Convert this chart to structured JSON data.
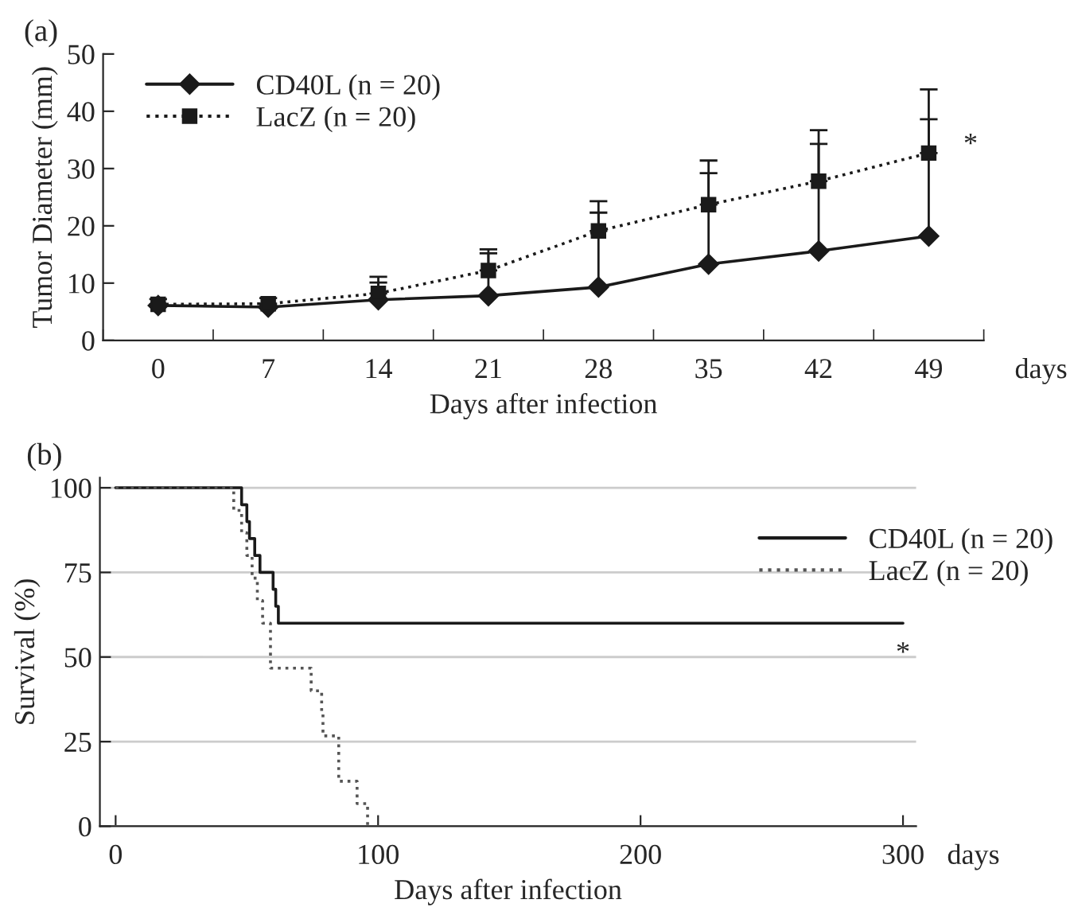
{
  "chart_data": [
    {
      "type": "line",
      "title": "(a)",
      "xlabel": "Days after infection",
      "ylabel": "Tumor Diameter (mm)",
      "categories": [
        "0",
        "7",
        "14",
        "21",
        "28",
        "35",
        "42",
        "49"
      ],
      "series": [
        {
          "name": "CD40L (n = 20)",
          "color": "#1a1a1a",
          "marker": "diamond",
          "line_style": "solid",
          "values": [
            6.1,
            5.8,
            7.1,
            7.8,
            9.3,
            13.3,
            15.6,
            18.2
          ],
          "errors": [
            null,
            null,
            [
              7.1,
              11.1
            ],
            [
              7.8,
              15.9
            ],
            [
              9.3,
              22.3
            ],
            [
              13.3,
              31.4
            ],
            [
              15.6,
              36.7
            ],
            [
              18.2,
              43.8
            ]
          ]
        },
        {
          "name": "LacZ (n = 20)",
          "color": "#1a1a1a",
          "marker": "square",
          "line_style": "dotted",
          "values": [
            6.3,
            6.4,
            8.2,
            12.2,
            19.1,
            23.7,
            27.8,
            32.7
          ],
          "errors": [
            [
              6.3,
              7.2
            ],
            [
              6.4,
              7.4
            ],
            [
              8.2,
              10.1
            ],
            [
              12.2,
              15.2
            ],
            [
              19.1,
              24.3
            ],
            [
              23.7,
              29.2
            ],
            [
              27.8,
              34.3
            ],
            [
              32.7,
              38.6
            ]
          ]
        }
      ],
      "ylim": [
        0,
        50
      ],
      "yticks": [
        0,
        10,
        20,
        30,
        40,
        50
      ],
      "grid": false,
      "legend": "top left",
      "annotations": [
        "days",
        {
          "text": "*",
          "x": "49",
          "y": 34
        }
      ]
    },
    {
      "type": "step",
      "title": "(b)",
      "xlabel": "Days after infection",
      "ylabel": "Survival (%)",
      "series": [
        {
          "name": "CD40L (n = 20)",
          "color": "#1a1a1a",
          "line_style": "solid",
          "x": [
            0,
            48,
            50,
            51,
            53,
            55,
            60,
            61,
            62,
            300
          ],
          "values": [
            100,
            95,
            90,
            85,
            80,
            75,
            70,
            65,
            60,
            60
          ]
        },
        {
          "name": "LacZ (n = 20)",
          "color": "#555555",
          "line_style": "dotted",
          "x": [
            0,
            45,
            48,
            50,
            52,
            54,
            56,
            59,
            74.5,
            78.5,
            79,
            85,
            92,
            96
          ],
          "values": [
            100,
            93.3,
            86.7,
            80,
            73.3,
            66.7,
            60,
            46.7,
            40,
            33.3,
            26.7,
            13.3,
            6.7,
            0
          ]
        }
      ],
      "xlim": [
        -6,
        305
      ],
      "xticks": [
        0,
        100,
        200,
        300
      ],
      "ylim": [
        0,
        103
      ],
      "yticks": [
        0,
        25,
        50,
        75,
        100
      ],
      "grid": "y",
      "legend": "top right",
      "annotations": [
        "days",
        "*"
      ]
    }
  ]
}
